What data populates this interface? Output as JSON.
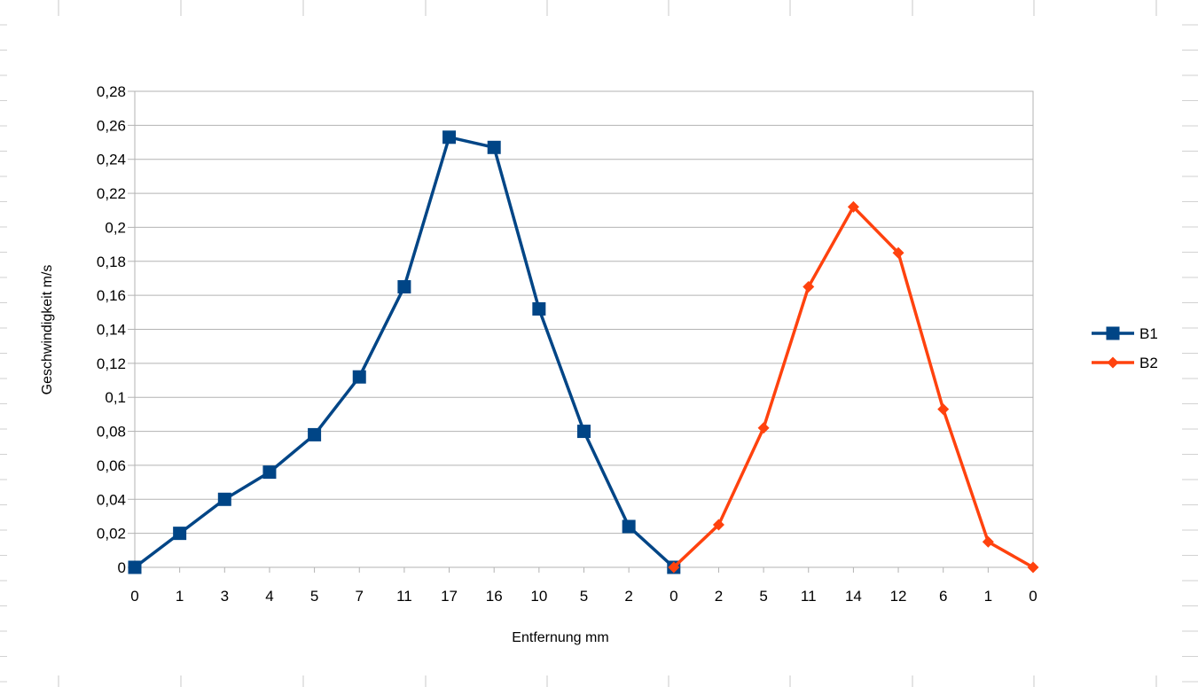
{
  "chart_data": {
    "type": "line",
    "title": "",
    "xlabel": "Entfernung mm",
    "ylabel": "Geschwindigkeit m/s",
    "categories": [
      "0",
      "1",
      "3",
      "4",
      "5",
      "7",
      "11",
      "17",
      "16",
      "10",
      "5",
      "2",
      "0",
      "2",
      "5",
      "11",
      "14",
      "12",
      "6",
      "1",
      "0"
    ],
    "ylim": [
      0,
      0.28
    ],
    "yticks": [
      "0",
      "0,02",
      "0,04",
      "0,06",
      "0,08",
      "0,1",
      "0,12",
      "0,14",
      "0,16",
      "0,18",
      "0,2",
      "0,22",
      "0,24",
      "0,26",
      "0,28"
    ],
    "grid": "horizontal",
    "legend_position": "right",
    "series": [
      {
        "name": "B1",
        "color": "#004586",
        "marker": "square",
        "values": [
          0,
          0.02,
          0.04,
          0.056,
          0.078,
          0.112,
          0.165,
          0.253,
          0.247,
          0.152,
          0.08,
          0.024,
          0,
          null,
          null,
          null,
          null,
          null,
          null,
          null,
          null
        ]
      },
      {
        "name": "B2",
        "color": "#ff420e",
        "marker": "diamond",
        "values": [
          null,
          null,
          null,
          null,
          null,
          null,
          null,
          null,
          null,
          null,
          null,
          null,
          0,
          0.025,
          0.082,
          0.165,
          0.212,
          0.185,
          0.093,
          0.015,
          0
        ]
      }
    ]
  }
}
